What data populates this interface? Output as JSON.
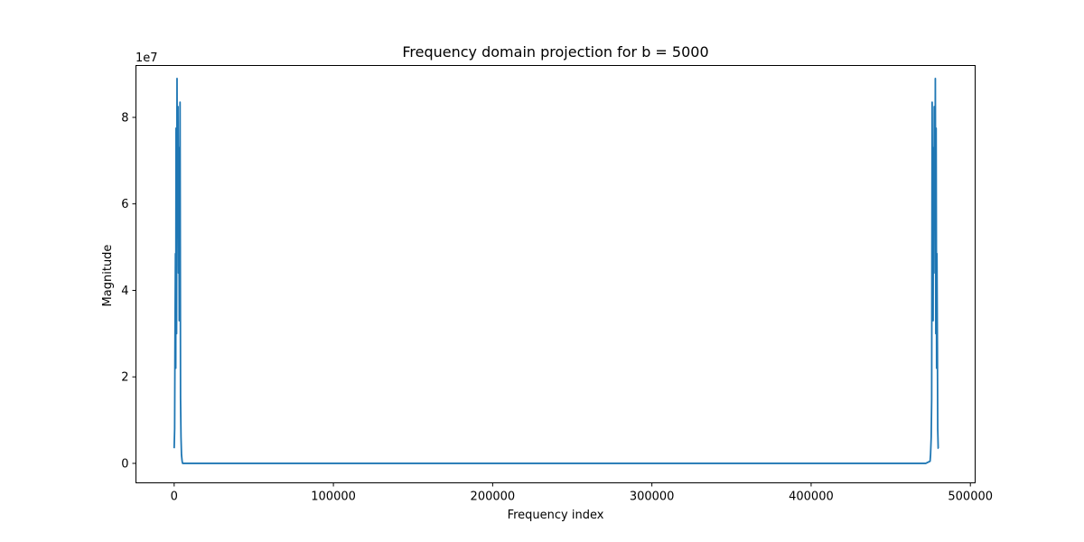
{
  "chart_data": {
    "type": "line",
    "title": "Frequency domain projection for b = 5000",
    "xlabel": "Frequency index",
    "ylabel": "Magnitude",
    "y_offset_label": "1e7",
    "y_multiplier": 10000000,
    "xlim": [
      -24000,
      503000
    ],
    "ylim": [
      -0.45,
      9.2
    ],
    "x_ticks": [
      0,
      100000,
      200000,
      300000,
      400000,
      500000
    ],
    "x_tick_labels": [
      "0",
      "100000",
      "200000",
      "300000",
      "400000",
      "500000"
    ],
    "y_ticks": [
      0,
      2,
      4,
      6,
      8
    ],
    "y_tick_labels": [
      "0",
      "2",
      "4",
      "6",
      "8"
    ],
    "grid": false,
    "legend": "none",
    "series_color": "#1f77b4",
    "series": [
      {
        "x": [
          0,
          300,
          500,
          800,
          1000,
          1200,
          1500,
          1800,
          2000,
          2200,
          2400,
          2700,
          2900,
          3200,
          3400,
          3700,
          4000,
          4300,
          4600,
          5000,
          5300,
          8000,
          100000,
          200000,
          300000,
          400000,
          472000,
          474700,
          475000,
          475400,
          475700,
          476000,
          476300,
          476600,
          476800,
          477100,
          477300,
          477600,
          477800,
          478000,
          478300,
          478500,
          478800,
          479000,
          479300,
          479500,
          479800,
          480000
        ],
        "y": [
          0.35,
          0.8,
          2.7,
          4.85,
          2.2,
          7.75,
          3.0,
          8.9,
          5.5,
          6.8,
          8.25,
          4.4,
          7.3,
          3.3,
          4.5,
          8.35,
          1.5,
          0.6,
          0.2,
          0.05,
          0,
          0,
          0,
          0,
          0,
          0,
          0,
          0.05,
          0.2,
          0.6,
          1.5,
          8.35,
          4.5,
          3.3,
          7.3,
          4.4,
          8.25,
          6.8,
          5.5,
          8.9,
          3.0,
          7.75,
          2.2,
          4.85,
          2.7,
          0.8,
          0.35,
          0.35
        ]
      }
    ]
  }
}
